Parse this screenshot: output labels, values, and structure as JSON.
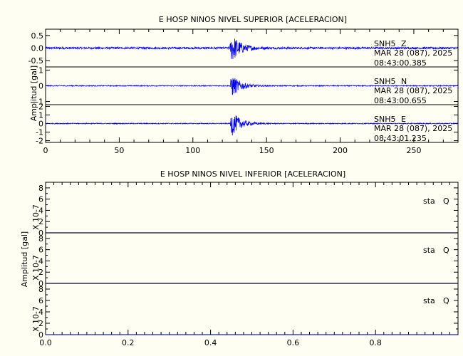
{
  "chart_data": [
    {
      "type": "line",
      "title": "E HOSP NINOS NIVEL SUPERIOR [ACELERACION]",
      "ylabel": "Amplitud [gal]",
      "xlim": [
        0,
        280
      ],
      "xticks": [
        "0",
        "50",
        "100",
        "150",
        "200",
        "250"
      ],
      "series": [
        {
          "name": "SNH5 Z",
          "station": "SNH5",
          "component": "Z",
          "date": "MAR 28 (087), 2025",
          "time": "08:43:00.385",
          "ylim": [
            -0.75,
            0.75
          ],
          "yticks": [
            "0.5",
            "0.0",
            "-0.5"
          ],
          "noise": 0.04,
          "event_onset": 125,
          "event_peak_amplitude": 0.7
        },
        {
          "name": "SNH5 N",
          "station": "SNH5",
          "component": "N",
          "date": "MAR 28 (087), 2025",
          "time": "08:43:00.655",
          "ylim": [
            -1.2,
            1.2
          ],
          "yticks": [
            "1",
            "0",
            "-1"
          ],
          "noise": 0.03,
          "event_onset": 125,
          "event_peak_amplitude": 0.9
        },
        {
          "name": "SNH5 E",
          "station": "SNH5",
          "component": "E",
          "date": "MAR 28 (087), 2025",
          "time": "08:43:01.235",
          "ylim": [
            -2.2,
            2.2
          ],
          "yticks": [
            "2",
            "1",
            "0",
            "-1",
            "-2"
          ],
          "noise": 0.05,
          "event_onset": 125,
          "event_peak_amplitude": 1.8
        }
      ]
    },
    {
      "type": "line",
      "title": "E HOSP NINOS NIVEL INFERIOR [ACELERACION]",
      "ylabel": "Amplitud [gal]",
      "xlim": [
        0,
        1
      ],
      "xticks": [
        "0.0",
        "0.2",
        "0.4",
        "0.6",
        "0.8"
      ],
      "scale_label": "X 10-7",
      "series": [
        {
          "name": "sta Q",
          "station": "sta",
          "component": "Q",
          "ylim": [
            0,
            9
          ],
          "yticks": [
            "0",
            "2",
            "4",
            "6",
            "8"
          ],
          "value": 0
        },
        {
          "name": "sta Q",
          "station": "sta",
          "component": "Q",
          "ylim": [
            0,
            9
          ],
          "yticks": [
            "0",
            "2",
            "4",
            "6",
            "8"
          ],
          "value": 0
        },
        {
          "name": "sta Q",
          "station": "sta",
          "component": "Q",
          "ylim": [
            0,
            9
          ],
          "yticks": [
            "0",
            "2",
            "4",
            "6",
            "8"
          ],
          "value": 0
        }
      ]
    }
  ]
}
